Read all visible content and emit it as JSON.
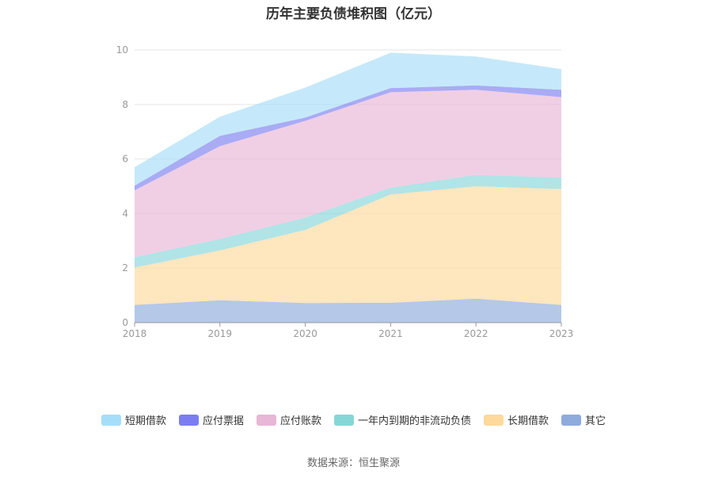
{
  "chart_data": {
    "type": "area",
    "stacked": true,
    "title": "历年主要负债堆积图（亿元）",
    "categories": [
      "2018",
      "2019",
      "2020",
      "2021",
      "2022",
      "2023"
    ],
    "ylim": [
      0,
      10
    ],
    "yticks": [
      "0",
      "2",
      "4",
      "6",
      "8",
      "10"
    ],
    "grid": true,
    "legend_position": "bottom",
    "series": [
      {
        "name": "其它",
        "color": "#8eabdc",
        "values": [
          0.65,
          0.82,
          0.72,
          0.73,
          0.88,
          0.65
        ]
      },
      {
        "name": "长期借款",
        "color": "#fdd99b",
        "values": [
          1.37,
          1.83,
          2.68,
          3.97,
          4.12,
          4.25
        ]
      },
      {
        "name": "一年内到期的非流动负债",
        "color": "#86d6d8",
        "values": [
          0.38,
          0.42,
          0.45,
          0.25,
          0.42,
          0.42
        ]
      },
      {
        "name": "应付账款",
        "color": "#e8b6d6",
        "values": [
          2.45,
          3.4,
          3.55,
          3.5,
          3.12,
          2.95
        ]
      },
      {
        "name": "应付票据",
        "color": "#7b7ef0",
        "values": [
          0.17,
          0.38,
          0.12,
          0.15,
          0.16,
          0.27
        ]
      },
      {
        "name": "短期借款",
        "color": "#a6ddf8",
        "values": [
          0.68,
          0.7,
          1.1,
          1.3,
          1.06,
          0.76
        ]
      }
    ],
    "legend_order": [
      "短期借款",
      "应付票据",
      "应付账款",
      "一年内到期的非流动负债",
      "长期借款",
      "其它"
    ]
  },
  "source_text": "数据来源：恒生聚源"
}
